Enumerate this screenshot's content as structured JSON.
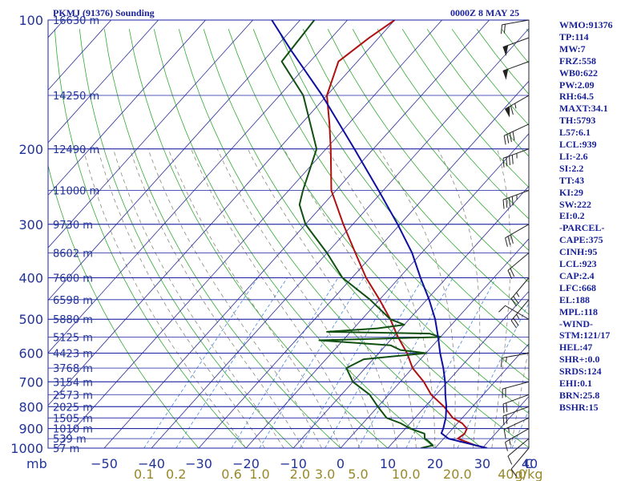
{
  "header": {
    "station": "PKMJ (91376) Sounding",
    "time": "0000Z  8 MAY 25"
  },
  "chart_data": {
    "type": "line",
    "title": "PKMJ (91376) Sounding",
    "subtitle": "0000Z  8 MAY 25",
    "xlabel": "",
    "ylabel": "mb",
    "pressure_ticks": [
      100,
      200,
      300,
      400,
      500,
      600,
      700,
      800,
      900,
      1000
    ],
    "temp_ticks": [
      -50,
      -40,
      -30,
      -20,
      -10,
      0,
      10,
      20,
      30,
      40
    ],
    "temp_tick_labels": [
      "−50",
      "−40",
      "−30",
      "−20",
      "−10",
      "0",
      "10",
      "20",
      "30",
      "40"
    ],
    "temp_unit": "C",
    "mixing_ratio_ticks": [
      0.1,
      0.2,
      0.6,
      1.0,
      2.0,
      3.0,
      5.0,
      10.0,
      20.0,
      40.0
    ],
    "mixing_ratio_labels": [
      "0.1",
      "0.2",
      "0.6",
      "1.0",
      "2.0",
      "3.0",
      "5.0",
      "10.0",
      "20.0",
      "40.0"
    ],
    "mixing_ratio_unit": "g/kg",
    "height_levels": [
      {
        "p": 100,
        "label": "16630 m"
      },
      {
        "p": 150,
        "label": "14250 m"
      },
      {
        "p": 200,
        "label": "12490 m"
      },
      {
        "p": 250,
        "label": "11000 m"
      },
      {
        "p": 300,
        "label": "9730 m"
      },
      {
        "p": 350,
        "label": "8602 m"
      },
      {
        "p": 400,
        "label": "7600 m"
      },
      {
        "p": 450,
        "label": "6598 m"
      },
      {
        "p": 500,
        "label": "5880 m"
      },
      {
        "p": 550,
        "label": "5125 m"
      },
      {
        "p": 600,
        "label": "4423 m"
      },
      {
        "p": 650,
        "label": "3768 m"
      },
      {
        "p": 700,
        "label": "3154 m"
      },
      {
        "p": 750,
        "label": "2573 m"
      },
      {
        "p": 800,
        "label": "2025 m"
      },
      {
        "p": 850,
        "label": "1505 m"
      },
      {
        "p": 900,
        "label": "1010 m"
      },
      {
        "p": 950,
        "label": "539 m"
      },
      {
        "p": 1000,
        "label": "57 m"
      }
    ],
    "series": [
      {
        "id": "temperature",
        "color": "#b01010",
        "points": [
          [
            1000,
            31
          ],
          [
            985,
            28
          ],
          [
            950,
            23
          ],
          [
            925,
            23.5
          ],
          [
            900,
            23
          ],
          [
            875,
            21
          ],
          [
            850,
            18
          ],
          [
            800,
            14
          ],
          [
            750,
            9
          ],
          [
            700,
            5
          ],
          [
            650,
            0
          ],
          [
            600,
            -4
          ],
          [
            550,
            -9
          ],
          [
            500,
            -14
          ],
          [
            450,
            -20
          ],
          [
            400,
            -27
          ],
          [
            350,
            -34
          ],
          [
            300,
            -42
          ],
          [
            250,
            -51
          ],
          [
            200,
            -59
          ],
          [
            175,
            -64
          ],
          [
            150,
            -70
          ],
          [
            125,
            -74
          ],
          [
            110,
            -72
          ],
          [
            100,
            -70
          ]
        ]
      },
      {
        "id": "dewpoint",
        "color": "#105010",
        "points": [
          [
            1000,
            17
          ],
          [
            985,
            19
          ],
          [
            960,
            17
          ],
          [
            950,
            16
          ],
          [
            925,
            15
          ],
          [
            900,
            11
          ],
          [
            875,
            8
          ],
          [
            850,
            4
          ],
          [
            800,
            0
          ],
          [
            750,
            -4
          ],
          [
            700,
            -10
          ],
          [
            650,
            -14
          ],
          [
            620,
            -12
          ],
          [
            600,
            0
          ],
          [
            590,
            -6
          ],
          [
            575,
            -9
          ],
          [
            560,
            -25
          ],
          [
            550,
            0
          ],
          [
            540,
            -3
          ],
          [
            535,
            -25
          ],
          [
            525,
            -15
          ],
          [
            515,
            -10
          ],
          [
            500,
            -14
          ],
          [
            450,
            -22
          ],
          [
            400,
            -32
          ],
          [
            350,
            -40
          ],
          [
            300,
            -50
          ],
          [
            270,
            -55
          ],
          [
            250,
            -57
          ],
          [
            200,
            -62
          ],
          [
            150,
            -75
          ],
          [
            125,
            -86
          ],
          [
            100,
            -87
          ]
        ]
      },
      {
        "id": "parcel",
        "color": "#1010a0",
        "points": [
          [
            1000,
            31
          ],
          [
            950,
            21
          ],
          [
            923,
            18.5
          ],
          [
            900,
            18
          ],
          [
            850,
            16.5
          ],
          [
            800,
            14.5
          ],
          [
            750,
            12
          ],
          [
            700,
            9.5
          ],
          [
            650,
            6.5
          ],
          [
            600,
            3
          ],
          [
            550,
            -0.5
          ],
          [
            500,
            -4.5
          ],
          [
            450,
            -9.5
          ],
          [
            400,
            -15.5
          ],
          [
            350,
            -22
          ],
          [
            300,
            -30.5
          ],
          [
            250,
            -41
          ],
          [
            200,
            -54
          ],
          [
            150,
            -71
          ],
          [
            118,
            -86
          ],
          [
            100,
            -96
          ]
        ]
      }
    ],
    "wind_barbs": [
      {
        "p": 1000,
        "dir": 220,
        "spd": 10
      },
      {
        "p": 950,
        "dir": 230,
        "spd": 10
      },
      {
        "p": 900,
        "dir": 240,
        "spd": 15
      },
      {
        "p": 850,
        "dir": 245,
        "spd": 15
      },
      {
        "p": 800,
        "dir": 250,
        "spd": 20
      },
      {
        "p": 750,
        "dir": 250,
        "spd": 20
      },
      {
        "p": 700,
        "dir": 255,
        "spd": 20
      },
      {
        "p": 600,
        "dir": 260,
        "spd": 15
      },
      {
        "p": 500,
        "dir": 300,
        "spd": 10
      },
      {
        "p": 450,
        "dir": 220,
        "spd": 25
      },
      {
        "p": 400,
        "dir": 220,
        "spd": 25
      },
      {
        "p": 350,
        "dir": 230,
        "spd": 20
      },
      {
        "p": 300,
        "dir": 240,
        "spd": 30
      },
      {
        "p": 250,
        "dir": 250,
        "spd": 45
      },
      {
        "p": 200,
        "dir": 250,
        "spd": 45
      },
      {
        "p": 175,
        "dir": 245,
        "spd": 40
      },
      {
        "p": 150,
        "dir": 240,
        "spd": 65
      },
      {
        "p": 125,
        "dir": 250,
        "spd": 50
      },
      {
        "p": 110,
        "dir": 250,
        "spd": 50
      },
      {
        "p": 100,
        "dir": 260,
        "spd": 20
      }
    ],
    "grid": true,
    "colors": {
      "isobar": "#1a22a0",
      "isotherm": "#2c2c9c",
      "dry_adiabat": "#33aa33",
      "moist_adiabat": "#8a8a7a",
      "mixing_ratio": "#4488dd",
      "axis_label": "#223399",
      "mixing_ratio_label": "#99882a"
    }
  },
  "stats": [
    "WMO:91376",
    "TP:114",
    "MW:7",
    "FRZ:558",
    "WB0:622",
    "PW:2.09",
    "RH:64.5",
    "MAXT:34.1",
    "TH:5793",
    "L57:6.1",
    "LCL:939",
    "LI:-2.6",
    "SI:2.2",
    "TT:43",
    "KI:29",
    "SW:222",
    "EI:0.2",
    "-PARCEL-",
    "CAPE:375",
    "CINH:95",
    "LCL:923",
    "CAP:2.4",
    "LFC:668",
    "EL:188",
    "MPL:118",
    "-WIND-",
    "STM:121/17",
    "HEL:47",
    "SHR+:0.0",
    "SRDS:124",
    "EHI:0.1",
    "BRN:25.8",
    "BSHR:15"
  ]
}
